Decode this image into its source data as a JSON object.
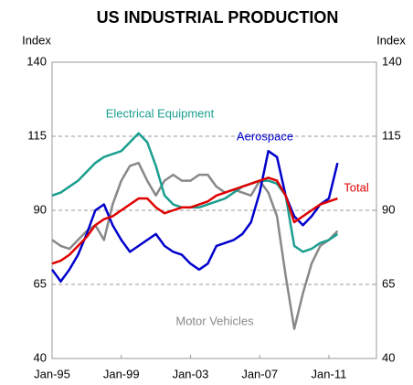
{
  "chart_data": {
    "type": "line",
    "title": "US INDUSTRIAL  PRODUCTION",
    "ylabel": "Index",
    "y2label": "Index",
    "x": [
      "1995-01",
      "1995-07",
      "1996-01",
      "1996-07",
      "1997-01",
      "1997-07",
      "1998-01",
      "1998-07",
      "1999-01",
      "1999-07",
      "2000-01",
      "2000-07",
      "2001-01",
      "2001-07",
      "2002-01",
      "2002-07",
      "2003-01",
      "2003-07",
      "2004-01",
      "2004-07",
      "2005-01",
      "2005-07",
      "2006-01",
      "2006-07",
      "2007-01",
      "2007-07",
      "2008-01",
      "2008-07",
      "2009-01",
      "2009-07",
      "2010-01",
      "2010-07",
      "2011-01",
      "2011-07"
    ],
    "xlim": [
      "1995-01",
      "2013-10"
    ],
    "xticks": [
      {
        "value": "1995-01",
        "label": "Jan-95"
      },
      {
        "value": "1999-01",
        "label": "Jan-99"
      },
      {
        "value": "2003-01",
        "label": "Jan-03"
      },
      {
        "value": "2007-01",
        "label": "Jan-07"
      },
      {
        "value": "2011-01",
        "label": "Jan-11"
      }
    ],
    "ylim": [
      40,
      140
    ],
    "yticks": [
      40,
      65,
      90,
      115,
      140
    ],
    "y2lim": [
      40,
      140
    ],
    "y2ticks": [
      40,
      65,
      90,
      115,
      140
    ],
    "grid": true,
    "series": [
      {
        "name": "Electrical Equipment",
        "color": "#1a9e8f",
        "values": [
          95,
          96,
          98,
          100,
          103,
          106,
          108,
          109,
          110,
          113,
          116,
          113,
          105,
          95,
          92,
          91,
          91,
          91,
          92,
          93,
          94,
          96,
          98,
          99,
          100,
          100,
          99,
          95,
          78,
          76,
          77,
          79,
          80,
          82
        ]
      },
      {
        "name": "Aerospace",
        "color": "#0000cc",
        "values": [
          70,
          66,
          70,
          75,
          82,
          90,
          92,
          85,
          80,
          76,
          78,
          80,
          82,
          78,
          76,
          75,
          72,
          70,
          72,
          78,
          79,
          80,
          82,
          86,
          96,
          110,
          108,
          95,
          88,
          85,
          88,
          92,
          94,
          106
        ]
      },
      {
        "name": "Total",
        "color": "#e00000",
        "values": [
          72,
          73,
          75,
          78,
          81,
          85,
          87,
          88,
          90,
          92,
          94,
          94,
          91,
          89,
          90,
          91,
          91,
          92,
          93,
          95,
          96,
          97,
          98,
          99,
          100,
          101,
          100,
          95,
          86,
          88,
          90,
          92,
          93,
          94
        ]
      },
      {
        "name": "Motor Vehicles",
        "color": "#888888",
        "values": [
          80,
          78,
          77,
          80,
          83,
          85,
          80,
          92,
          100,
          105,
          106,
          100,
          95,
          100,
          102,
          100,
          100,
          102,
          102,
          98,
          96,
          97,
          96,
          95,
          100,
          96,
          88,
          68,
          50,
          62,
          72,
          78,
          80,
          83
        ]
      }
    ]
  }
}
